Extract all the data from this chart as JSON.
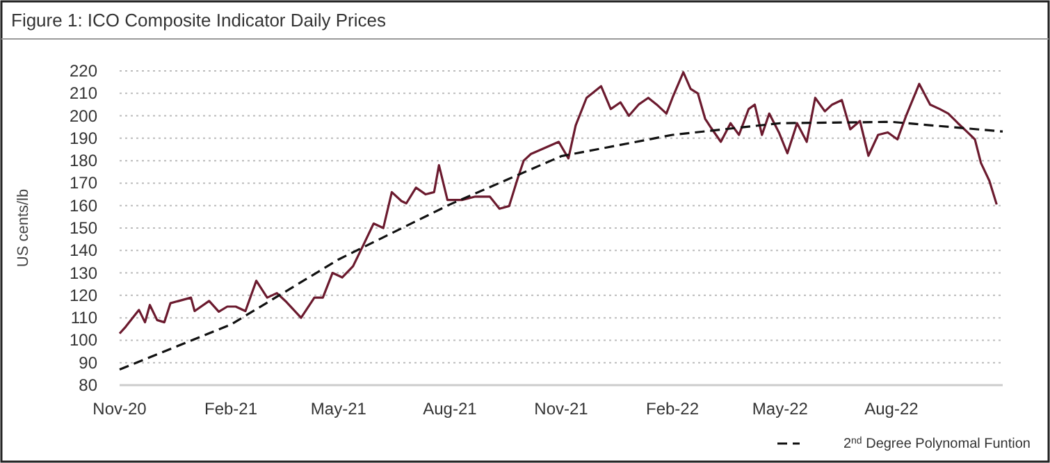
{
  "chart_data": {
    "type": "line",
    "title": "Figure 1: ICO Composite Indicator Daily Prices",
    "ylabel": "US cents/lb",
    "xlim": [
      "2020-11-01",
      "2022-11-01"
    ],
    "xticks": [
      {
        "value": "2020-11-01",
        "label": "Nov-20"
      },
      {
        "value": "2021-02-01",
        "label": "Feb-21"
      },
      {
        "value": "2021-05-01",
        "label": "May-21"
      },
      {
        "value": "2021-08-01",
        "label": "Aug-21"
      },
      {
        "value": "2021-11-01",
        "label": "Nov-21"
      },
      {
        "value": "2022-02-01",
        "label": "Feb-22"
      },
      {
        "value": "2022-05-01",
        "label": "May-22"
      },
      {
        "value": "2022-08-01",
        "label": "Aug-22"
      }
    ],
    "ylim": [
      80,
      220
    ],
    "yticks": [
      80,
      90,
      100,
      110,
      120,
      130,
      140,
      150,
      160,
      170,
      180,
      190,
      200,
      210,
      220
    ],
    "grid": "y",
    "legend": "bottom right",
    "series": [
      {
        "color": "#6b1a2e",
        "line_style": "solid",
        "x": [
          "2020-11-01",
          "2020-11-06",
          "2020-11-17",
          "2020-11-22",
          "2020-11-26",
          "2020-12-02",
          "2020-12-08",
          "2020-12-13",
          "2020-12-30",
          "2021-01-02",
          "2021-01-14",
          "2021-01-22",
          "2021-01-29",
          "2021-02-05",
          "2021-02-13",
          "2021-02-22",
          "2021-03-03",
          "2021-03-11",
          "2021-03-19",
          "2021-03-31",
          "2021-04-11",
          "2021-04-18",
          "2021-04-26",
          "2021-05-04",
          "2021-05-13",
          "2021-05-22",
          "2021-05-30",
          "2021-06-07",
          "2021-06-14",
          "2021-06-22",
          "2021-06-26",
          "2021-07-04",
          "2021-07-12",
          "2021-07-19",
          "2021-07-23",
          "2021-07-30",
          "2021-08-11",
          "2021-08-22",
          "2021-09-03",
          "2021-09-11",
          "2021-09-19",
          "2021-09-26",
          "2021-10-01",
          "2021-10-07",
          "2021-10-30",
          "2021-11-07",
          "2021-11-13",
          "2021-11-22",
          "2021-12-04",
          "2021-12-12",
          "2021-12-20",
          "2021-12-27",
          "2022-01-04",
          "2022-01-12",
          "2022-01-19",
          "2022-01-27",
          "2022-02-01",
          "2022-02-10",
          "2022-02-16",
          "2022-02-22",
          "2022-02-28",
          "2022-03-05",
          "2022-03-13",
          "2022-03-21",
          "2022-03-28",
          "2022-04-05",
          "2022-04-10",
          "2022-04-16",
          "2022-04-22",
          "2022-04-30",
          "2022-05-07",
          "2022-05-15",
          "2022-05-23",
          "2022-05-30",
          "2022-06-07",
          "2022-06-13",
          "2022-06-21",
          "2022-06-28",
          "2022-07-06",
          "2022-07-13",
          "2022-07-21",
          "2022-07-29",
          "2022-08-06",
          "2022-08-13",
          "2022-08-24",
          "2022-09-02",
          "2022-09-10",
          "2022-09-17",
          "2022-09-25",
          "2022-10-03",
          "2022-10-09",
          "2022-10-14",
          "2022-10-21",
          "2022-10-27"
        ],
        "values": [
          103,
          106,
          113.5,
          108,
          115.7,
          109,
          108,
          116.5,
          119,
          113,
          117.5,
          112.7,
          115,
          115,
          113,
          126.5,
          119,
          121,
          117,
          110,
          119,
          119,
          130,
          128,
          133,
          143,
          152,
          150,
          166,
          162,
          161,
          168,
          165,
          166,
          178,
          162.5,
          162.5,
          164,
          164,
          158.6,
          159.8,
          172,
          180,
          183,
          188.4,
          181,
          195.7,
          208,
          213.2,
          203,
          206,
          200,
          205,
          208,
          205,
          201,
          208,
          219.4,
          212,
          210,
          198.7,
          194.6,
          188.4,
          196.7,
          191.5,
          203,
          205,
          191.5,
          201,
          192.6,
          183.3,
          196.7,
          188.4,
          208,
          202,
          205,
          207,
          194,
          197.7,
          182.2,
          191.5,
          192.6,
          189.5,
          199.8,
          214.2,
          205,
          203,
          201,
          196.7,
          192.6,
          189.5,
          179,
          171,
          160.5
        ]
      },
      {
        "name": "2$^{nd}$ Degree Polynomal Funtion",
        "color": "#111111",
        "line_style": "dashed",
        "x": [
          "2020-11-01",
          "2021-02-01",
          "2021-05-01",
          "2021-08-01",
          "2021-11-01",
          "2022-02-01",
          "2022-05-01",
          "2022-08-01",
          "2022-11-01"
        ],
        "values": [
          87,
          107,
          136,
          160.5,
          182,
          191.5,
          196.7,
          197.3,
          193
        ]
      }
    ]
  }
}
